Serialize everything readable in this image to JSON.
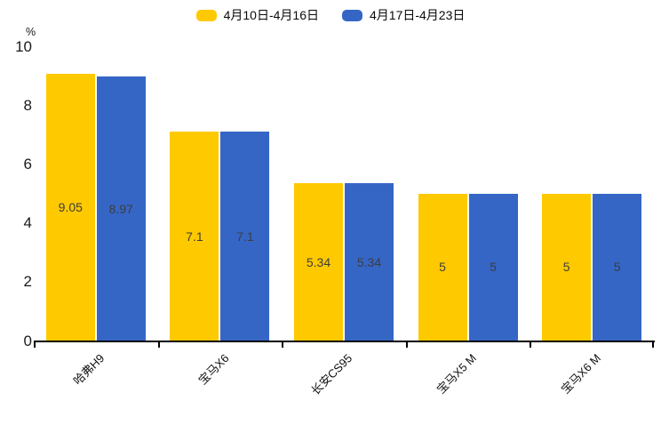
{
  "chart_data": {
    "type": "bar",
    "title": "",
    "categories": [
      "哈弗H9",
      "宝马X6",
      "长安CS95",
      "宝马X5 M",
      "宝马X6 M"
    ],
    "series": [
      {
        "name": "4月10日-4月16日",
        "color": "#FFC900",
        "values": [
          9.05,
          7.1,
          5.34,
          5,
          5
        ]
      },
      {
        "name": "4月17日-4月23日",
        "color": "#3566C6",
        "values": [
          8.97,
          7.1,
          5.34,
          5,
          5
        ]
      }
    ],
    "value_labels": [
      "9.05",
      "8.97",
      "7.1",
      "7.1",
      "5.34",
      "5.34",
      "5",
      "5",
      "5",
      "5"
    ],
    "xlabel": "",
    "ylabel": "%",
    "ylim": [
      0,
      10
    ],
    "yticks": [
      0,
      2,
      4,
      6,
      8,
      10
    ],
    "grid": false,
    "legend_position": "top",
    "value_label_position": "inside-center",
    "colors": {
      "axis": "#000000",
      "bar_label_text": "#3d3d3d",
      "tick_label_text": "#1a1a1a"
    }
  }
}
